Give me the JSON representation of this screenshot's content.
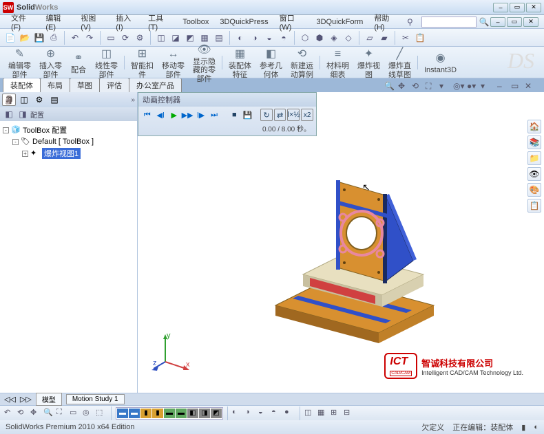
{
  "app": {
    "name_bold": "S",
    "name_rest": "olid",
    "name_gray": "Works"
  },
  "menus": [
    "文件(F)",
    "编辑(E)",
    "视图(V)",
    "插入(I)",
    "工具(T)",
    "Toolbox",
    "3DQuickPress",
    "窗口(W)",
    "3DQuickForm",
    "帮助(H)"
  ],
  "ribbon": [
    {
      "icon": "✎",
      "label": "编辑零\n部件"
    },
    {
      "icon": "⊕",
      "label": "插入零\n部件"
    },
    {
      "icon": "⚭",
      "label": "配合"
    },
    {
      "icon": "◫",
      "label": "线性零\n部件"
    },
    {
      "icon": "⊞",
      "label": "智能扣\n件"
    },
    {
      "icon": "↔",
      "label": "移动零\n部件"
    },
    {
      "icon": "👁",
      "label": "显示隐\n藏的零\n部件"
    },
    {
      "icon": "▦",
      "label": "装配体\n特征"
    },
    {
      "icon": "◧",
      "label": "参考几\n何体"
    },
    {
      "icon": "⟲",
      "label": "新建运\n动算例"
    },
    {
      "icon": "≡",
      "label": "材料明\n细表"
    },
    {
      "icon": "✦",
      "label": "爆炸视\n图"
    },
    {
      "icon": "╱",
      "label": "爆炸直\n线草图"
    },
    {
      "icon": "◉",
      "label": "Instant3D"
    }
  ],
  "doc_tabs": [
    "装配体",
    "布局",
    "草图",
    "评估",
    "办公室产品"
  ],
  "tree": {
    "root": "ToolBox 配置",
    "default": "Default [ ToolBox ]",
    "exploded": "爆炸视图1"
  },
  "anim": {
    "title": "动画控制器",
    "time": "0.00 / 8.00 秒。",
    "speed": "x2"
  },
  "bottom_tabs": [
    "模型",
    "Motion Study 1"
  ],
  "status": {
    "left": "SolidWorks Premium 2010 x64 Edition",
    "def": "欠定义",
    "editing": "正在编辑：装配体"
  },
  "company": {
    "cn": "智诚科技有限公司",
    "en": "Intelligent CAD/CAM Technology Ltd."
  },
  "colors": {
    "axis_x": "#d04040",
    "axis_y": "#30a030",
    "axis_z": "#3050c0",
    "model_orange": "#d89030",
    "model_blue": "#3050c8",
    "model_cream": "#e8e0c0",
    "model_red": "#d04040",
    "model_pink": "#e888a0",
    "model_dark": "#1a2a60"
  }
}
